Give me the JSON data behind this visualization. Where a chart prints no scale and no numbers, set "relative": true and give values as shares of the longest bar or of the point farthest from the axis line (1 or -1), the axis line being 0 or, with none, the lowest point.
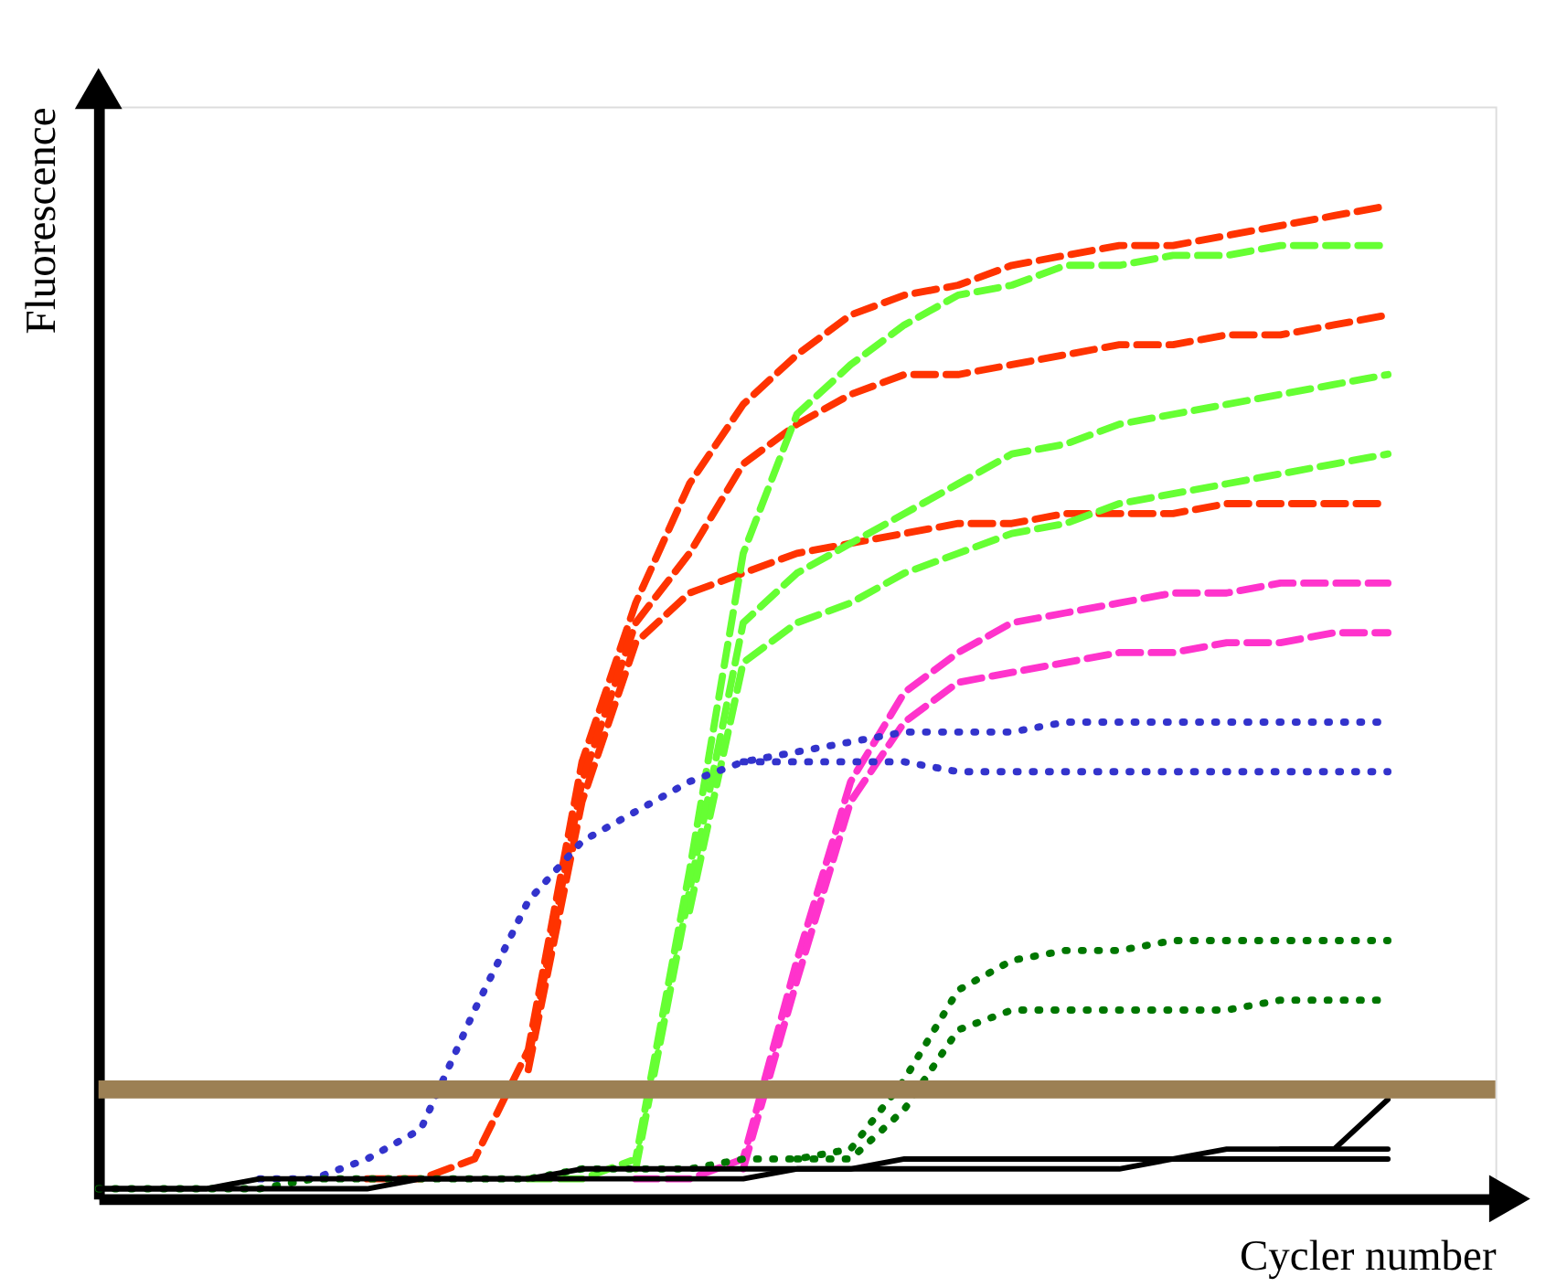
{
  "chart_data": {
    "type": "line",
    "relative": true,
    "xlabel": "Cycler number",
    "ylabel": "Fluorescence",
    "grid": false,
    "marker": "none",
    "categories": [
      null,
      null,
      null,
      null,
      null,
      null,
      null,
      null,
      null,
      null,
      null,
      null,
      null,
      null,
      null,
      null,
      null,
      null,
      null,
      null,
      null,
      null,
      null,
      null,
      null
    ],
    "ref_lines": [
      {
        "axis": "y",
        "value": 0.11,
        "color": "#9c8054"
      }
    ],
    "series": [
      {
        "color": "#ff3300",
        "line_style": "dashed",
        "values": [
          null,
          null,
          null,
          null,
          null,
          0.02,
          0.02,
          0.04,
          0.15,
          0.44,
          0.6,
          0.72,
          0.8,
          0.85,
          0.89,
          0.91,
          0.92,
          0.94,
          0.95,
          0.96,
          0.96,
          0.97,
          0.98,
          0.99,
          1.0
        ]
      },
      {
        "color": "#ff3300",
        "line_style": "dashed",
        "values": [
          null,
          null,
          null,
          null,
          null,
          null,
          null,
          null,
          0.14,
          0.42,
          0.58,
          0.65,
          0.74,
          0.78,
          0.81,
          0.83,
          0.83,
          0.84,
          0.85,
          0.86,
          0.86,
          0.87,
          0.87,
          0.88,
          0.89
        ]
      },
      {
        "color": "#ff3300",
        "line_style": "dashed",
        "values": [
          null,
          null,
          null,
          null,
          null,
          null,
          null,
          null,
          0.13,
          0.4,
          0.56,
          0.61,
          0.63,
          0.65,
          0.66,
          0.67,
          0.68,
          0.68,
          0.69,
          0.69,
          0.69,
          0.7,
          0.7,
          0.7,
          0.7
        ]
      },
      {
        "color": "#66ff33",
        "line_style": "dashed",
        "values": [
          null,
          null,
          null,
          null,
          null,
          null,
          null,
          null,
          0.02,
          0.02,
          0.04,
          0.33,
          0.65,
          0.79,
          0.84,
          0.88,
          0.91,
          0.92,
          0.94,
          0.94,
          0.95,
          0.95,
          0.96,
          0.96,
          0.96
        ]
      },
      {
        "color": "#66ff33",
        "line_style": "dashed",
        "values": [
          null,
          null,
          null,
          null,
          null,
          null,
          null,
          null,
          null,
          null,
          0.03,
          0.31,
          0.58,
          0.63,
          0.66,
          0.69,
          0.72,
          0.75,
          0.76,
          0.78,
          0.79,
          0.8,
          0.81,
          0.82,
          0.83
        ]
      },
      {
        "color": "#66ff33",
        "line_style": "dashed",
        "values": [
          null,
          null,
          null,
          null,
          null,
          null,
          null,
          null,
          null,
          null,
          null,
          0.29,
          0.54,
          0.58,
          0.6,
          0.63,
          0.65,
          0.67,
          0.68,
          0.7,
          0.71,
          0.72,
          0.73,
          0.74,
          0.75
        ]
      },
      {
        "color": "#ff33cc",
        "line_style": "dashed",
        "values": [
          null,
          null,
          null,
          null,
          null,
          null,
          null,
          null,
          null,
          null,
          0.02,
          0.02,
          0.04,
          0.24,
          0.42,
          0.51,
          0.55,
          0.58,
          0.59,
          0.6,
          0.61,
          0.61,
          0.62,
          0.62,
          0.62
        ]
      },
      {
        "color": "#ff33cc",
        "line_style": "dashed",
        "values": [
          null,
          null,
          null,
          null,
          null,
          null,
          null,
          null,
          null,
          null,
          null,
          null,
          0.03,
          0.22,
          0.4,
          0.48,
          0.52,
          0.53,
          0.54,
          0.55,
          0.55,
          0.56,
          0.56,
          0.57,
          0.57
        ]
      },
      {
        "color": "#3333cc",
        "line_style": "dotted",
        "values": [
          null,
          null,
          null,
          0.02,
          0.02,
          0.04,
          0.07,
          0.19,
          0.3,
          0.36,
          0.39,
          0.42,
          0.44,
          0.45,
          0.46,
          0.47,
          0.47,
          0.47,
          0.48,
          0.48,
          0.48,
          0.48,
          0.48,
          0.48,
          0.48
        ]
      },
      {
        "color": "#3333cc",
        "line_style": "dotted",
        "values": [
          null,
          null,
          null,
          null,
          null,
          null,
          null,
          null,
          null,
          null,
          null,
          null,
          0.44,
          0.44,
          0.44,
          0.44,
          0.43,
          0.43,
          0.43,
          0.43,
          0.43,
          0.43,
          0.43,
          0.43,
          0.43
        ]
      },
      {
        "color": "#007700",
        "line_style": "dotted",
        "values": [
          0.01,
          0.01,
          0.01,
          0.01,
          0.02,
          0.02,
          0.02,
          0.02,
          0.02,
          0.03,
          0.03,
          0.03,
          0.04,
          0.04,
          0.05,
          0.12,
          0.21,
          0.24,
          0.25,
          0.25,
          0.26,
          0.26,
          0.26,
          0.26,
          0.26
        ]
      },
      {
        "color": "#007700",
        "line_style": "dotted",
        "values": [
          null,
          null,
          null,
          null,
          null,
          null,
          null,
          null,
          null,
          null,
          null,
          null,
          null,
          0.04,
          0.04,
          0.09,
          0.17,
          0.19,
          0.19,
          0.19,
          0.19,
          0.19,
          0.2,
          0.2,
          0.2
        ]
      },
      {
        "color": "#000000",
        "line_style": "solid",
        "values": [
          0.01,
          0.01,
          0.01,
          0.02,
          0.02,
          0.02,
          0.02,
          0.02,
          0.02,
          0.03,
          0.03,
          0.03,
          0.03,
          0.03,
          0.03,
          0.04,
          0.04,
          0.04,
          0.04,
          0.04,
          0.04,
          0.05,
          0.05,
          0.05,
          0.05
        ]
      },
      {
        "color": "#000000",
        "line_style": "solid",
        "values": [
          0.01,
          0.01,
          0.01,
          0.01,
          0.01,
          0.01,
          0.02,
          0.02,
          0.02,
          0.02,
          0.02,
          0.02,
          0.02,
          0.03,
          0.03,
          0.03,
          0.03,
          0.03,
          0.03,
          0.03,
          0.04,
          0.04,
          0.04,
          0.04,
          0.04
        ]
      },
      {
        "color": "#000000",
        "line_style": "solid",
        "values": [
          null,
          null,
          null,
          null,
          null,
          null,
          null,
          null,
          null,
          null,
          null,
          null,
          null,
          null,
          null,
          null,
          null,
          null,
          null,
          null,
          null,
          null,
          0.05,
          0.05,
          0.1
        ]
      }
    ]
  }
}
